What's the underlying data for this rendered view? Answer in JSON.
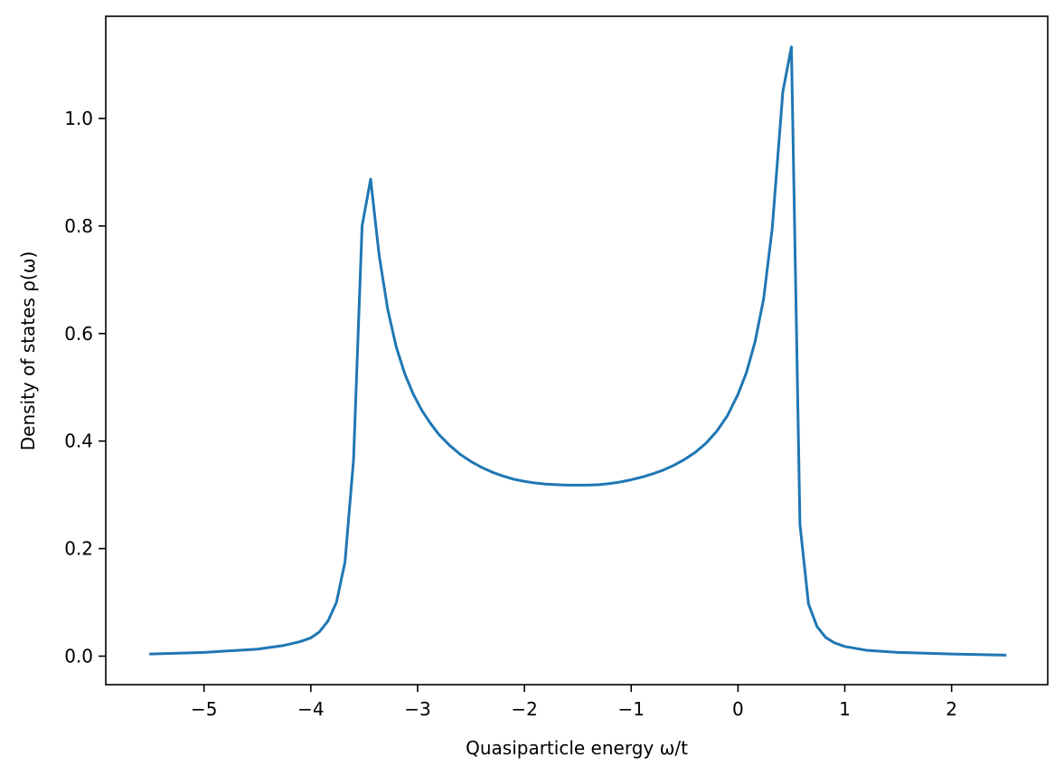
{
  "chart_data": {
    "type": "line",
    "title": "",
    "xlabel": "Quasiparticle energy ω/t",
    "ylabel": "Density of states ρ(ω)",
    "xlim": [
      -5.92,
      2.9
    ],
    "ylim": [
      -0.053,
      1.19
    ],
    "grid": false,
    "legend": "none",
    "x_ticks": [
      {
        "value": -5,
        "label": "−5"
      },
      {
        "value": -4,
        "label": "−4"
      },
      {
        "value": -3,
        "label": "−3"
      },
      {
        "value": -2,
        "label": "−2"
      },
      {
        "value": -1,
        "label": "−1"
      },
      {
        "value": 0,
        "label": "0"
      },
      {
        "value": 1,
        "label": "1"
      },
      {
        "value": 2,
        "label": "2"
      }
    ],
    "y_ticks": [
      {
        "value": 0.0,
        "label": "0.0"
      },
      {
        "value": 0.2,
        "label": "0.2"
      },
      {
        "value": 0.4,
        "label": "0.4"
      },
      {
        "value": 0.6,
        "label": "0.6"
      },
      {
        "value": 0.8,
        "label": "0.8"
      },
      {
        "value": 1.0,
        "label": "1.0"
      }
    ],
    "series": [
      {
        "color": "#1f77b4",
        "x": [
          -5.5,
          -5.0,
          -4.5,
          -4.25,
          -4.1,
          -4.0,
          -3.92,
          -3.84,
          -3.76,
          -3.68,
          -3.6,
          -3.52,
          -3.44,
          -3.36,
          -3.28,
          -3.2,
          -3.12,
          -3.04,
          -2.96,
          -2.88,
          -2.8,
          -2.7,
          -2.6,
          -2.5,
          -2.4,
          -2.3,
          -2.2,
          -2.1,
          -2.0,
          -1.9,
          -1.8,
          -1.7,
          -1.6,
          -1.5,
          -1.4,
          -1.3,
          -1.2,
          -1.1,
          -1.0,
          -0.9,
          -0.8,
          -0.7,
          -0.6,
          -0.5,
          -0.4,
          -0.3,
          -0.2,
          -0.1,
          0.0,
          0.08,
          0.16,
          0.24,
          0.32,
          0.42,
          0.5,
          0.58,
          0.66,
          0.74,
          0.82,
          0.9,
          1.0,
          1.2,
          1.5,
          2.0,
          2.5
        ],
        "y": [
          0.004,
          0.007,
          0.013,
          0.02,
          0.027,
          0.034,
          0.045,
          0.065,
          0.1,
          0.175,
          0.365,
          0.8,
          0.887,
          0.745,
          0.645,
          0.575,
          0.525,
          0.487,
          0.457,
          0.433,
          0.412,
          0.392,
          0.375,
          0.362,
          0.351,
          0.342,
          0.335,
          0.329,
          0.325,
          0.322,
          0.32,
          0.319,
          0.318,
          0.318,
          0.318,
          0.319,
          0.321,
          0.324,
          0.328,
          0.333,
          0.339,
          0.346,
          0.355,
          0.366,
          0.379,
          0.396,
          0.418,
          0.447,
          0.487,
          0.528,
          0.585,
          0.665,
          0.795,
          1.05,
          1.133,
          0.245,
          0.097,
          0.055,
          0.035,
          0.025,
          0.018,
          0.011,
          0.007,
          0.004,
          0.002
        ]
      }
    ]
  }
}
